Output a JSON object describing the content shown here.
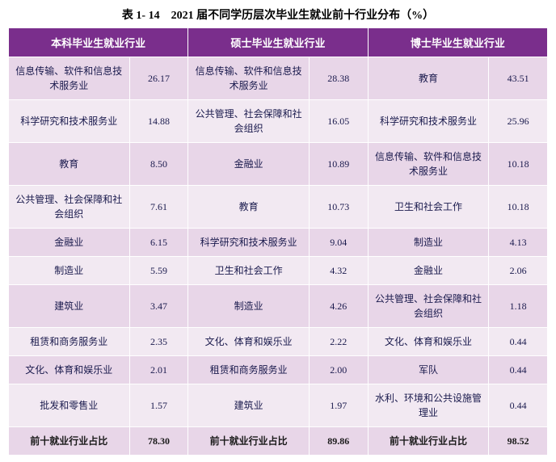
{
  "title": "表 1- 14　2021 届不同学历层次毕业生就业前十行业分布（%）",
  "headers": [
    "本科毕业生就业行业",
    "硕士毕业生就业行业",
    "博士毕业生就业行业"
  ],
  "rows": [
    {
      "b_label": "信息传输、软件和信息技术服务业",
      "b_val": "26.17",
      "m_label": "信息传输、软件和信息技术服务业",
      "m_val": "28.38",
      "d_label": "教育",
      "d_val": "43.51"
    },
    {
      "b_label": "科学研究和技术服务业",
      "b_val": "14.88",
      "m_label": "公共管理、社会保障和社会组织",
      "m_val": "16.05",
      "d_label": "科学研究和技术服务业",
      "d_val": "25.96"
    },
    {
      "b_label": "教育",
      "b_val": "8.50",
      "m_label": "金融业",
      "m_val": "10.89",
      "d_label": "信息传输、软件和信息技术服务业",
      "d_val": "10.18"
    },
    {
      "b_label": "公共管理、社会保障和社会组织",
      "b_val": "7.61",
      "m_label": "教育",
      "m_val": "10.73",
      "d_label": "卫生和社会工作",
      "d_val": "10.18"
    },
    {
      "b_label": "金融业",
      "b_val": "6.15",
      "m_label": "科学研究和技术服务业",
      "m_val": "9.04",
      "d_label": "制造业",
      "d_val": "4.13"
    },
    {
      "b_label": "制造业",
      "b_val": "5.59",
      "m_label": "卫生和社会工作",
      "m_val": "4.32",
      "d_label": "金融业",
      "d_val": "2.06"
    },
    {
      "b_label": "建筑业",
      "b_val": "3.47",
      "m_label": "制造业",
      "m_val": "4.26",
      "d_label": "公共管理、社会保障和社会组织",
      "d_val": "1.18"
    },
    {
      "b_label": "租赁和商务服务业",
      "b_val": "2.35",
      "m_label": "文化、体育和娱乐业",
      "m_val": "2.22",
      "d_label": "文化、体育和娱乐业",
      "d_val": "0.44"
    },
    {
      "b_label": "文化、体育和娱乐业",
      "b_val": "2.01",
      "m_label": "租赁和商务服务业",
      "m_val": "2.00",
      "d_label": "军队",
      "d_val": "0.44"
    },
    {
      "b_label": "批发和零售业",
      "b_val": "1.57",
      "m_label": "建筑业",
      "m_val": "1.97",
      "d_label": "水利、环境和公共设施管理业",
      "d_val": "0.44"
    }
  ],
  "total": {
    "b_label": "前十就业行业占比",
    "b_val": "78.30",
    "m_label": "前十就业行业占比",
    "m_val": "89.86",
    "d_label": "前十就业行业占比",
    "d_val": "98.52"
  },
  "style": {
    "header_bg": "#7a2e8c",
    "header_color": "#ffffff",
    "row_odd_bg": "#e8d6e8",
    "row_even_bg": "#f2e9f2",
    "text_color": "#1a1a4d",
    "border_color": "#ffffff",
    "title_fontsize": 14,
    "cell_fontsize": 12
  }
}
